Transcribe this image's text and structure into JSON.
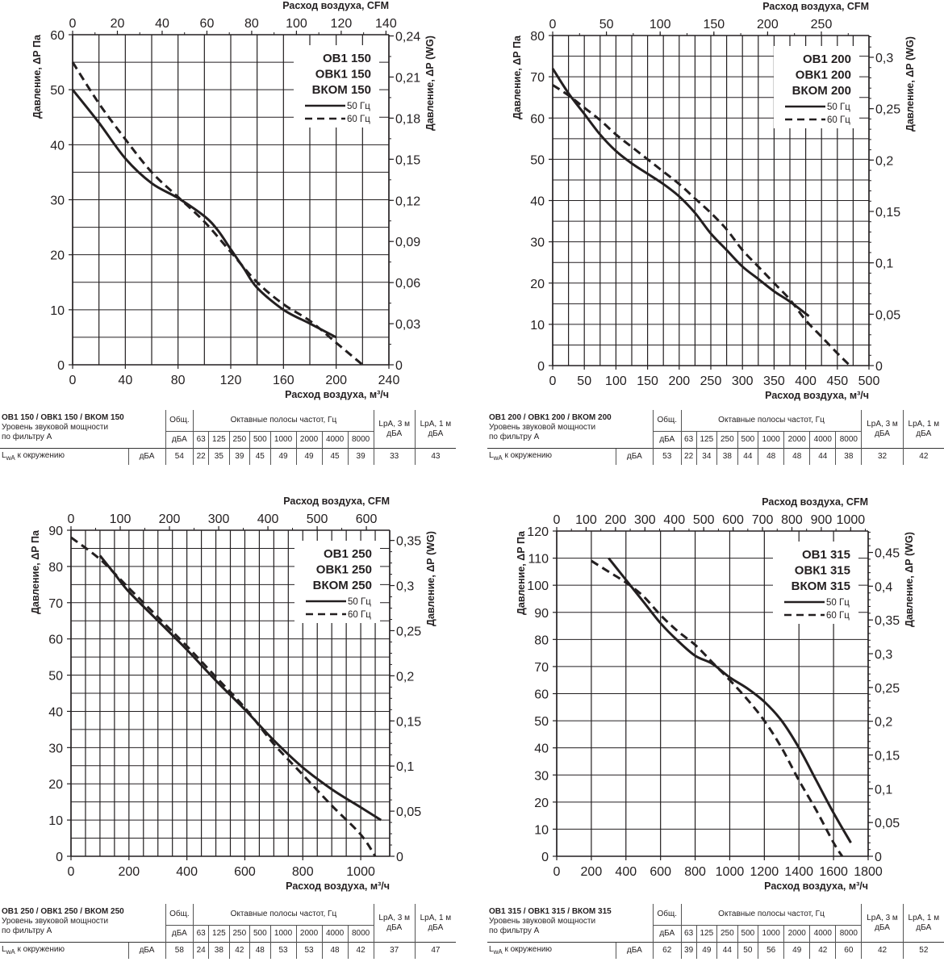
{
  "chart_data": [
    {
      "type": "line",
      "title_lines": [
        "ОВ1 150",
        "ОВК1 150",
        "ВКОМ 150"
      ],
      "xlabel": "Расход воздуха, м³/ч",
      "x2label": "Расход воздуха, CFM",
      "ylabel": "Давление, ΔР Па",
      "y2label": "Давление, ΔР (WG)",
      "xlim": [
        0,
        240
      ],
      "ylim": [
        0,
        60
      ],
      "x2lim": [
        0,
        141.3
      ],
      "y2lim": [
        0,
        0.2409
      ],
      "xticks": [
        "0",
        "40",
        "80",
        "120",
        "160",
        "200",
        "240"
      ],
      "xtick_values": [
        0,
        40,
        80,
        120,
        160,
        200,
        240
      ],
      "yticks": [
        "0",
        "10",
        "20",
        "30",
        "40",
        "50",
        "60"
      ],
      "ytick_values": [
        0,
        10,
        20,
        30,
        40,
        50,
        60
      ],
      "x2ticks": [
        "0",
        "20",
        "40",
        "60",
        "80",
        "100",
        "120",
        "140"
      ],
      "x2tick_values": [
        0,
        20,
        40,
        60,
        80,
        100,
        120,
        140
      ],
      "x2minor": 10,
      "y2ticks": [
        "0",
        "0,03",
        "0,06",
        "0,09",
        "0,12",
        "0,15",
        "0,18",
        "0,21",
        "0,24"
      ],
      "y2tick_values": [
        0,
        0.03,
        0.06,
        0.09,
        0.12,
        0.15,
        0.18,
        0.21,
        0.24
      ],
      "y2minor": 0.015,
      "xgrid": 20,
      "ygrid": 5,
      "grid": true,
      "legend_position": "top-right",
      "series": [
        {
          "name": "50 Гц",
          "style": "solid",
          "x": [
            0,
            20,
            40,
            60,
            80,
            100,
            110,
            120,
            130,
            140,
            160,
            180,
            200
          ],
          "y": [
            50,
            44,
            37.5,
            33,
            30.3,
            27,
            24.5,
            21,
            17.5,
            14,
            10,
            7.5,
            5
          ]
        },
        {
          "name": "60 Гц",
          "style": "dashed",
          "x": [
            0,
            20,
            40,
            60,
            80,
            100,
            120,
            140,
            160,
            180,
            200,
            220
          ],
          "y": [
            55,
            47.5,
            41,
            35,
            30.5,
            26,
            20.5,
            15,
            11,
            8,
            4,
            0
          ]
        }
      ]
    },
    {
      "type": "line",
      "title_lines": [
        "ОВ1 200",
        "ОВК1 200",
        "ВКОМ 200"
      ],
      "xlabel": "Расход воздуха, м³/ч",
      "x2label": "Расход воздуха, CFM",
      "ylabel": "Давление, ΔР Па",
      "y2label": "Давление, ΔР (WG)",
      "xlim": [
        0,
        500
      ],
      "ylim": [
        0,
        80
      ],
      "x2lim": [
        0,
        294.3
      ],
      "y2lim": [
        0,
        0.3212
      ],
      "xticks": [
        "0",
        "50",
        "100",
        "150",
        "200",
        "250",
        "300",
        "350",
        "400",
        "450",
        "500"
      ],
      "xtick_values": [
        0,
        50,
        100,
        150,
        200,
        250,
        300,
        350,
        400,
        450,
        500
      ],
      "yticks": [
        "0",
        "10",
        "20",
        "30",
        "40",
        "50",
        "60",
        "70",
        "80"
      ],
      "ytick_values": [
        0,
        10,
        20,
        30,
        40,
        50,
        60,
        70,
        80
      ],
      "x2ticks": [
        "0",
        "50",
        "100",
        "150",
        "200",
        "250"
      ],
      "x2tick_values": [
        0,
        50,
        100,
        150,
        200,
        250
      ],
      "x2minor": 25,
      "y2ticks": [
        "0",
        "0,05",
        "0,1",
        "0,15",
        "0,2",
        "0,25",
        "0,3"
      ],
      "y2tick_values": [
        0,
        0.05,
        0.1,
        0.15,
        0.2,
        0.25,
        0.3
      ],
      "y2minor": 0.01,
      "xgrid": 25,
      "ygrid": 5,
      "grid": true,
      "legend_position": "top-right",
      "series": [
        {
          "name": "50 Гц",
          "style": "solid",
          "x": [
            0,
            25,
            50,
            75,
            100,
            125,
            150,
            175,
            200,
            225,
            250,
            275,
            300,
            325,
            350,
            375,
            405
          ],
          "y": [
            72,
            66,
            61,
            56,
            52,
            49,
            46.5,
            44,
            41,
            37,
            32,
            28,
            24,
            21,
            18,
            15.5,
            12
          ]
        },
        {
          "name": "60 Гц",
          "style": "dashed",
          "x": [
            0,
            25,
            50,
            75,
            100,
            125,
            150,
            175,
            200,
            225,
            250,
            275,
            300,
            325,
            350,
            375,
            400,
            425,
            450,
            470
          ],
          "y": [
            68,
            65.5,
            62.5,
            59.5,
            56,
            53,
            50,
            47,
            44,
            40.5,
            37,
            33,
            28,
            24,
            20,
            16,
            11,
            7,
            3,
            0
          ]
        }
      ]
    },
    {
      "type": "line",
      "title_lines": [
        "ОВ1 250",
        "ОВК1 250",
        "ВКОМ 250"
      ],
      "xlabel": "Расход воздуха, м³/ч",
      "x2label": "Расход воздуха, CFM",
      "ylabel": "Давление, ΔР Па",
      "y2label": "Давление, ΔР (WG)",
      "xlim": [
        0,
        1100
      ],
      "ylim": [
        0,
        90
      ],
      "x2lim": [
        0,
        647.4
      ],
      "y2lim": [
        0,
        0.3613
      ],
      "xticks": [
        "0",
        "200",
        "400",
        "600",
        "800",
        "1000"
      ],
      "xtick_values": [
        0,
        200,
        400,
        600,
        800,
        1000
      ],
      "yticks": [
        "0",
        "10",
        "20",
        "30",
        "40",
        "50",
        "60",
        "70",
        "80",
        "90"
      ],
      "ytick_values": [
        0,
        10,
        20,
        30,
        40,
        50,
        60,
        70,
        80,
        90
      ],
      "x2ticks": [
        "0",
        "100",
        "200",
        "300",
        "400",
        "500",
        "600"
      ],
      "x2tick_values": [
        0,
        100,
        200,
        300,
        400,
        500,
        600
      ],
      "x2minor": 50,
      "y2ticks": [
        "0",
        "0,05",
        "0,1",
        "0,15",
        "0,2",
        "0,25",
        "0,3",
        "0,35"
      ],
      "y2tick_values": [
        0,
        0.05,
        0.1,
        0.15,
        0.2,
        0.25,
        0.3,
        0.35
      ],
      "y2minor": 0.0125,
      "xgrid": 50,
      "ygrid": 5,
      "grid": true,
      "legend_position": "top-right",
      "series": [
        {
          "name": "50 Гц",
          "style": "solid",
          "x": [
            100,
            150,
            200,
            300,
            400,
            500,
            600,
            700,
            800,
            900,
            1000,
            1070
          ],
          "y": [
            83,
            78,
            73,
            65,
            57,
            48.5,
            40.5,
            32,
            24.5,
            18.5,
            13.5,
            10
          ]
        },
        {
          "name": "60 Гц",
          "style": "dashed",
          "x": [
            0,
            100,
            200,
            300,
            400,
            500,
            600,
            700,
            800,
            900,
            1000,
            1050
          ],
          "y": [
            88,
            82,
            74,
            66,
            58,
            49.5,
            41,
            31,
            22.5,
            14,
            6,
            0
          ]
        }
      ]
    },
    {
      "type": "line",
      "title_lines": [
        "ОВ1 315",
        "ОВК1 315",
        "ВКОМ 315"
      ],
      "xlabel": "Расход воздуха, м³/ч",
      "x2label": "Расход воздуха, CFM",
      "ylabel": "Давление, ΔР Па",
      "y2label": "Давление, ΔР (WG)",
      "xlim": [
        0,
        1800
      ],
      "ylim": [
        0,
        120
      ],
      "x2lim": [
        0,
        1059.4
      ],
      "y2lim": [
        0,
        0.4817
      ],
      "xticks": [
        "0",
        "200",
        "400",
        "600",
        "800",
        "1000",
        "1200",
        "1400",
        "1600",
        "1800"
      ],
      "xtick_values": [
        0,
        200,
        400,
        600,
        800,
        1000,
        1200,
        1400,
        1600,
        1800
      ],
      "yticks": [
        "0",
        "10",
        "20",
        "30",
        "40",
        "50",
        "60",
        "70",
        "80",
        "90",
        "100",
        "110",
        "120"
      ],
      "ytick_values": [
        0,
        10,
        20,
        30,
        40,
        50,
        60,
        70,
        80,
        90,
        100,
        110,
        120
      ],
      "x2ticks": [
        "0",
        "100",
        "200",
        "300",
        "400",
        "500",
        "600",
        "700",
        "800",
        "900",
        "1000"
      ],
      "x2tick_values": [
        0,
        100,
        200,
        300,
        400,
        500,
        600,
        700,
        800,
        900,
        1000
      ],
      "x2minor": 50,
      "y2ticks": [
        "0",
        "0,05",
        "0,1",
        "0,15",
        "0,2",
        "0,25",
        "0,3",
        "0,35",
        "0,4",
        "0,45"
      ],
      "y2tick_values": [
        0,
        0.05,
        0.1,
        0.15,
        0.2,
        0.25,
        0.3,
        0.35,
        0.4,
        0.45
      ],
      "y2minor": 0.01,
      "xgrid": 200,
      "ygrid": 10,
      "grid": true,
      "legend_position": "top-right",
      "series": [
        {
          "name": "50 Гц",
          "style": "solid",
          "x": [
            300,
            400,
            500,
            600,
            700,
            800,
            900,
            1000,
            1100,
            1200,
            1300,
            1400,
            1500,
            1600,
            1700
          ],
          "y": [
            110,
            102,
            94,
            86,
            79.5,
            74,
            71,
            66,
            62,
            57,
            50,
            40,
            28,
            16,
            5
          ]
        },
        {
          "name": "60 Гц",
          "style": "dashed",
          "x": [
            200,
            300,
            400,
            500,
            600,
            700,
            800,
            900,
            1000,
            1100,
            1200,
            1300,
            1400,
            1500,
            1600,
            1650
          ],
          "y": [
            109,
            105,
            101,
            96,
            89,
            83,
            78,
            71.5,
            65,
            58,
            50,
            40,
            28,
            17,
            5,
            0
          ]
        }
      ]
    }
  ],
  "tables": [
    {
      "title": "ОВ1 150 / ОВК1 150 / ВКОМ 150",
      "subtitle1": "Уровень звуковой мощности",
      "subtitle2": "по фильтру А",
      "total_header": "Общ.",
      "total_unit": "дБА",
      "octave_header": "Октавные полосы частот, Гц",
      "freqs": [
        "63",
        "125",
        "250",
        "500",
        "1000",
        "2000",
        "4000",
        "8000"
      ],
      "lpa3_header": "LpA, 3 м",
      "lpa1_header": "LpA, 1 м",
      "lpa_unit": "дБА",
      "row_label": "L",
      "row_label_sub": "wA",
      "row_label_rest": " к окружению",
      "row_unit": "дБА",
      "total": "54",
      "values": [
        "22",
        "35",
        "39",
        "45",
        "49",
        "49",
        "45",
        "39"
      ],
      "lpa3": "33",
      "lpa1": "43"
    },
    {
      "title": "ОВ1 200 / ОВК1 200 / ВКОМ 200",
      "subtitle1": "Уровень звуковой мощности",
      "subtitle2": "по фильтру А",
      "total_header": "Общ.",
      "total_unit": "дБА",
      "octave_header": "Октавные полосы частот, Гц",
      "freqs": [
        "63",
        "125",
        "250",
        "500",
        "1000",
        "2000",
        "4000",
        "8000"
      ],
      "lpa3_header": "LpA, 3 м",
      "lpa1_header": "LpA, 1 м",
      "lpa_unit": "дБА",
      "row_label": "L",
      "row_label_sub": "wA",
      "row_label_rest": " к окружению",
      "row_unit": "дБА",
      "total": "53",
      "values": [
        "22",
        "34",
        "38",
        "44",
        "48",
        "48",
        "44",
        "38"
      ],
      "lpa3": "32",
      "lpa1": "42"
    },
    {
      "title": "ОВ1 250 / ОВК1 250 / ВКОМ 250",
      "subtitle1": "Уровень звуковой мощности",
      "subtitle2": "по фильтру А",
      "total_header": "Общ.",
      "total_unit": "дБА",
      "octave_header": "Октавные полосы частот, Гц",
      "freqs": [
        "63",
        "125",
        "250",
        "500",
        "1000",
        "2000",
        "4000",
        "8000"
      ],
      "lpa3_header": "LpA, 3 м",
      "lpa1_header": "LpA, 1 м",
      "lpa_unit": "дБА",
      "row_label": "L",
      "row_label_sub": "wA",
      "row_label_rest": " к окружению",
      "row_unit": "дБА",
      "total": "58",
      "values": [
        "24",
        "38",
        "42",
        "48",
        "53",
        "53",
        "48",
        "42"
      ],
      "lpa3": "37",
      "lpa1": "47"
    },
    {
      "title": "ОВ1 315 / ОВК1 315 / ВКОМ 315",
      "subtitle1": "Уровень звуковой мощности",
      "subtitle2": "по фильтру А",
      "total_header": "Общ.",
      "total_unit": "дБА",
      "octave_header": "Октавные полосы частот, Гц",
      "freqs": [
        "63",
        "125",
        "250",
        "500",
        "1000",
        "2000",
        "4000",
        "8000"
      ],
      "lpa3_header": "LpA, 3 м",
      "lpa1_header": "LpA, 1 м",
      "lpa_unit": "дБА",
      "row_label": "L",
      "row_label_sub": "wA",
      "row_label_rest": " к окружению",
      "row_unit": "дБА",
      "total": "62",
      "values": [
        "39",
        "49",
        "44",
        "50",
        "56",
        "49",
        "42",
        "60"
      ],
      "lpa3": "42",
      "lpa1": "52"
    }
  ],
  "colors": {
    "ink": "#231f20",
    "grid": "#231f20",
    "background": "#ffffff"
  }
}
